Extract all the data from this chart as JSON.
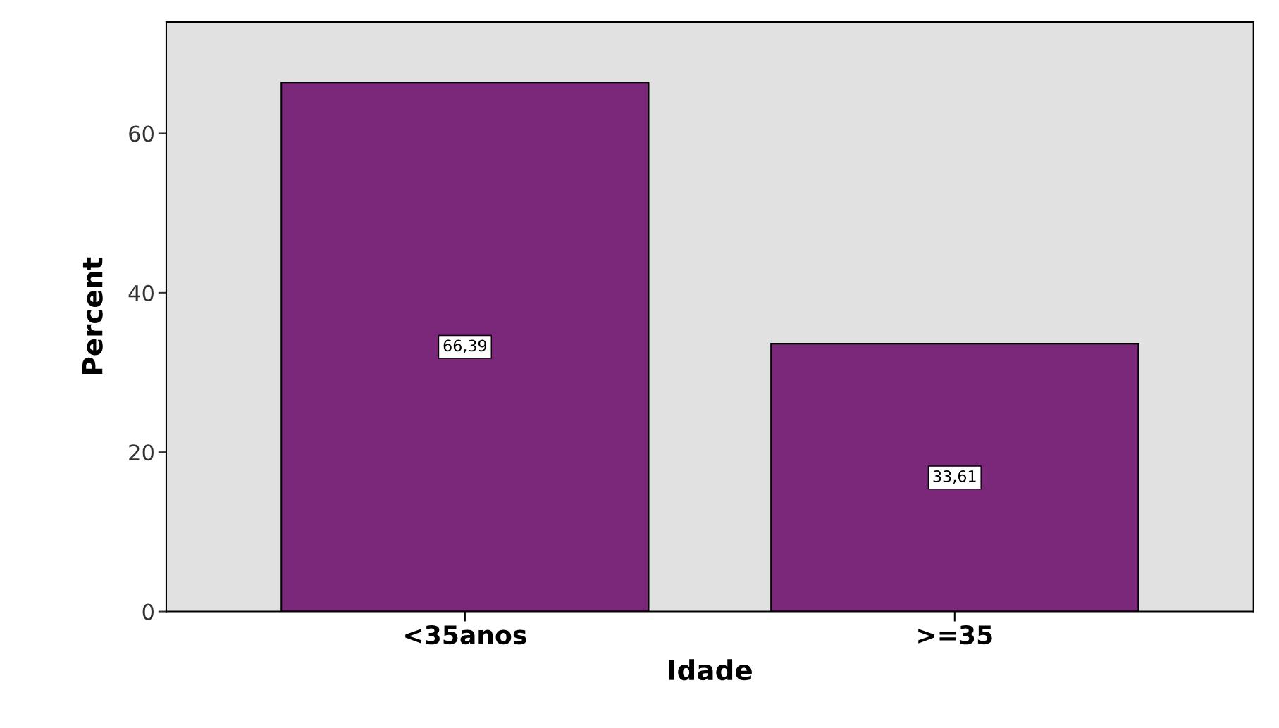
{
  "chart_data": {
    "type": "bar",
    "xlabel": "Idade",
    "ylabel": "Percent",
    "categories": [
      "<35anos",
      ">=35"
    ],
    "values": [
      66.39,
      33.61
    ],
    "value_labels": [
      "66,39",
      "33,61"
    ],
    "color": "#7b287a",
    "ylim": [
      0,
      74
    ],
    "yticks": [
      0,
      20,
      40,
      60
    ],
    "grid": false
  }
}
